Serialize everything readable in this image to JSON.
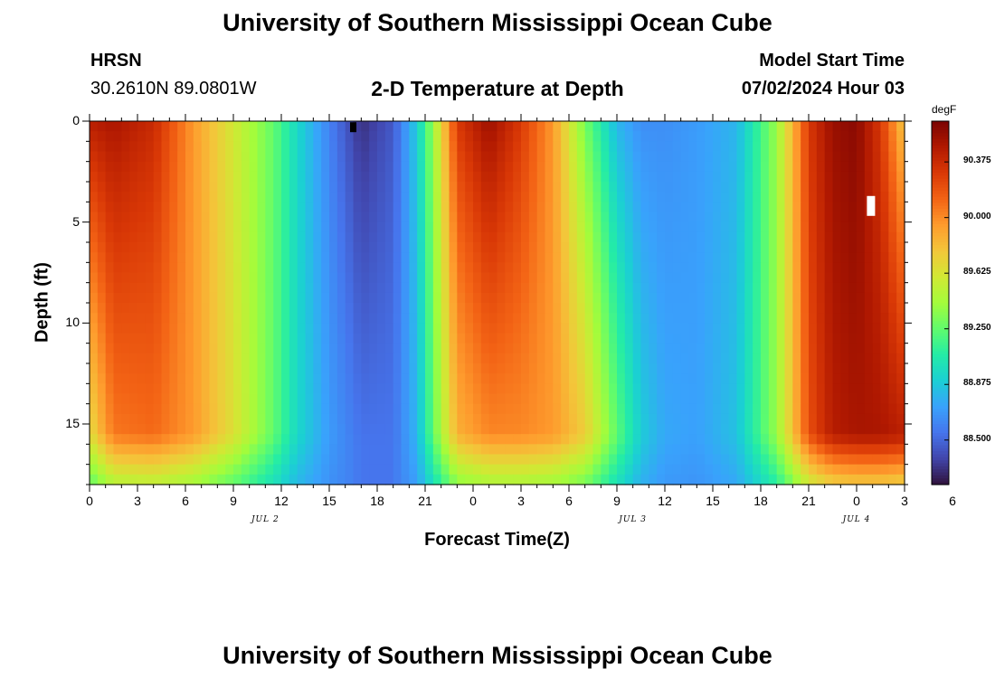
{
  "header": {
    "title": "University of Southern Mississippi Ocean Cube",
    "station": "HRSN",
    "coords": "30.2610N  89.0801W",
    "subtitle": "2-D Temperature at Depth",
    "model_label": "Model Start Time",
    "model_time": "07/02/2024 Hour 03",
    "bottom_title": "University of Southern Mississippi Ocean Cube"
  },
  "colorbar": {
    "unit": "degF",
    "min": 88.2,
    "max": 90.65,
    "ticks": [
      "90.375",
      "90.000",
      "89.625",
      "89.250",
      "88.875",
      "88.500"
    ],
    "colormap": [
      "#30123b",
      "#4145ab",
      "#4675ed",
      "#39a2fc",
      "#1bcfd4",
      "#24eca6",
      "#61fc6c",
      "#a4fc3b",
      "#d1e834",
      "#f3c63a",
      "#fe9b2d",
      "#f36315",
      "#d93806",
      "#b11901",
      "#7a0402"
    ]
  },
  "chart_data": {
    "type": "heatmap",
    "title": "2-D Temperature at Depth",
    "xlabel": "Forecast Time(Z)",
    "ylabel": "Depth (ft)",
    "x_range_hours": [
      0,
      51
    ],
    "x_tick_labels": [
      "0",
      "3",
      "6",
      "9",
      "12",
      "15",
      "18",
      "21",
      "0",
      "3",
      "6",
      "9",
      "12",
      "15",
      "18",
      "21",
      "0",
      "3",
      "6"
    ],
    "day_labels": [
      {
        "label": "JUL 2",
        "hour": 11
      },
      {
        "label": "JUL 3",
        "hour": 34
      },
      {
        "label": "JUL 4",
        "hour": 48
      }
    ],
    "y_range_ft": [
      0,
      18
    ],
    "y_tick_labels": [
      "0",
      "5",
      "10",
      "15"
    ],
    "y_tick_values": [
      0,
      5,
      10,
      15
    ],
    "series": [
      {
        "name": "Temperature (degF)",
        "keyframes_time_hours": [
          0,
          1.5,
          4,
          6.5,
          9,
          11.5,
          13,
          15,
          17,
          19,
          20.5,
          21.5,
          23,
          25,
          27,
          29,
          31,
          33,
          34.5,
          36,
          38,
          40.5,
          43,
          45,
          46.5,
          48,
          49.5,
          51
        ],
        "surface_degF": [
          90.45,
          90.5,
          90.38,
          89.95,
          89.6,
          89.25,
          88.95,
          88.6,
          88.3,
          88.45,
          88.9,
          89.4,
          90.3,
          90.55,
          90.3,
          89.95,
          89.3,
          88.8,
          88.65,
          88.65,
          88.7,
          88.8,
          89.4,
          90.3,
          90.55,
          90.6,
          90.3,
          89.75
        ],
        "near_bottom_degF": [
          89.65,
          90.05,
          90.1,
          89.95,
          89.65,
          89.25,
          88.95,
          88.7,
          88.55,
          88.55,
          88.8,
          89.25,
          89.85,
          90.0,
          90.0,
          89.95,
          89.75,
          89.25,
          88.9,
          88.75,
          88.72,
          88.85,
          89.4,
          90.2,
          90.45,
          90.5,
          90.5,
          90.45
        ]
      }
    ],
    "markers": [
      {
        "hour": 16.5,
        "depth_ft": 0.3,
        "color": "#000000"
      },
      {
        "hour": 48.9,
        "depth_ft": 4.2,
        "color": "#ffffff"
      }
    ]
  }
}
